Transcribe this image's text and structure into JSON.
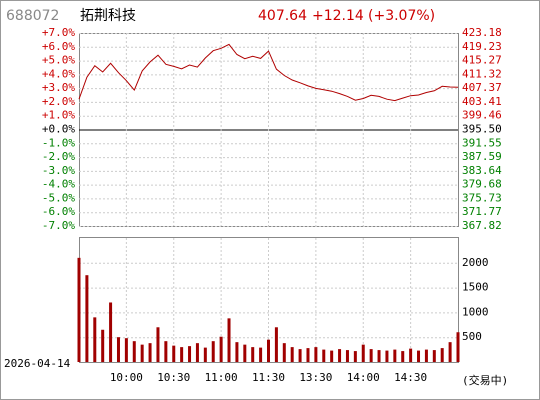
{
  "chart_data": [
    {
      "type": "line",
      "symbol": "688072",
      "name": "拓荆科技",
      "last": "407.64",
      "change": "+12.14",
      "change_pct": "(+3.07%)",
      "date": "2026-04-14",
      "status": "(交易中)",
      "up_color": "#cc0000",
      "down_color": "#008000",
      "grid": true,
      "x": [
        "09:30",
        "09:35",
        "09:40",
        "09:45",
        "09:50",
        "09:55",
        "10:00",
        "10:05",
        "10:10",
        "10:15",
        "10:20",
        "10:25",
        "10:30",
        "10:35",
        "10:40",
        "10:45",
        "10:50",
        "10:55",
        "11:00",
        "11:05",
        "11:10",
        "11:15",
        "11:20",
        "11:25",
        "11:30",
        "13:05",
        "13:10",
        "13:15",
        "13:20",
        "13:25",
        "13:30",
        "13:35",
        "13:40",
        "13:45",
        "13:50",
        "13:55",
        "14:00",
        "14:05",
        "14:10",
        "14:15",
        "14:20",
        "14:25",
        "14:30",
        "14:35",
        "14:40",
        "14:45",
        "14:50",
        "14:55",
        "15:00"
      ],
      "xlim": [
        "09:30",
        "15:00"
      ],
      "xticks": [
        "10:00",
        "10:30",
        "11:00",
        "11:30",
        "13:30",
        "14:00",
        "14:30"
      ],
      "ylim": [
        -7,
        7
      ],
      "yticks": [
        {
          "value": 7,
          "label": "+7.0%"
        },
        {
          "value": 6,
          "label": "+6.0%"
        },
        {
          "value": 5,
          "label": "+5.0%"
        },
        {
          "value": 4,
          "label": "+4.0%"
        },
        {
          "value": 3,
          "label": "+3.0%"
        },
        {
          "value": 2,
          "label": "+2.0%"
        },
        {
          "value": 1,
          "label": "+1.0%"
        },
        {
          "value": 0,
          "label": "+0.0%"
        },
        {
          "value": -1,
          "label": "-1.0%"
        },
        {
          "value": -2,
          "label": "-2.0%"
        },
        {
          "value": -3,
          "label": "-3.0%"
        },
        {
          "value": -4,
          "label": "-4.0%"
        },
        {
          "value": -5,
          "label": "-5.0%"
        },
        {
          "value": -6,
          "label": "-6.0%"
        },
        {
          "value": -7,
          "label": "-7.0%"
        }
      ],
      "y2lim": [
        367.82,
        423.18
      ],
      "y2ticks": [
        423.18,
        419.23,
        415.27,
        411.32,
        407.37,
        403.41,
        399.46,
        {
          "value": 395.5,
          "label": "395.50"
        },
        391.55,
        387.59,
        383.64,
        379.68,
        375.73,
        371.77,
        367.82
      ],
      "series": [
        {
          "name": "拓荆科技",
          "color": "#b00000",
          "axis": "y2",
          "values": [
            404.2,
            410.5,
            413.8,
            412.0,
            414.5,
            411.8,
            409.5,
            406.8,
            412.3,
            414.9,
            416.8,
            414.2,
            413.6,
            412.9,
            414.0,
            413.4,
            416.0,
            418.1,
            418.8,
            419.9,
            417.0,
            415.8,
            416.5,
            415.9,
            418.0,
            412.8,
            411.0,
            409.7,
            408.9,
            408.0,
            407.3,
            406.9,
            406.5,
            405.8,
            405.0,
            403.9,
            404.4,
            405.3,
            405.0,
            404.2,
            403.8,
            404.5,
            405.2,
            405.4,
            406.1,
            406.6,
            407.9,
            407.7,
            407.64
          ]
        }
      ]
    },
    {
      "type": "bar",
      "color": "#a00000",
      "ylim": [
        0,
        2500
      ],
      "yticks": [
        500,
        1000,
        1500,
        2000
      ],
      "values": [
        2100,
        1750,
        900,
        650,
        1200,
        500,
        480,
        420,
        350,
        380,
        700,
        420,
        330,
        300,
        320,
        380,
        290,
        420,
        510,
        880,
        400,
        350,
        300,
        290,
        450,
        700,
        380,
        300,
        260,
        280,
        300,
        250,
        230,
        260,
        240,
        220,
        350,
        260,
        240,
        230,
        250,
        220,
        270,
        230,
        250,
        240,
        280,
        400,
        600
      ]
    }
  ]
}
